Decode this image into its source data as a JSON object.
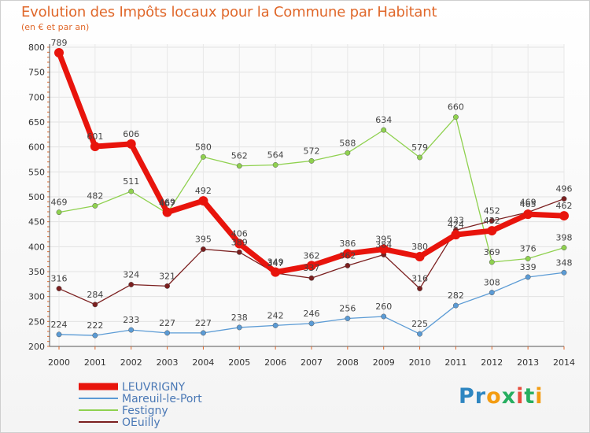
{
  "header": {
    "title": "Evolution des Impôts locaux pour la Commune par Habitant",
    "subtitle": "(en € et par an)"
  },
  "logo": {
    "text": "Proxiti",
    "letters": [
      "P",
      "r",
      "o",
      "x",
      "i",
      "t",
      "i"
    ],
    "colors": [
      "#2e86c1",
      "#2e86c1",
      "#f39c12",
      "#27ae60",
      "#e74c3c",
      "#27ae60",
      "#f39c12"
    ]
  },
  "chart_data": {
    "type": "line",
    "title": "Evolution des Impôts locaux pour la Commune par Habitant",
    "subtitle": "(en € et par an)",
    "xlabel": "",
    "ylabel": "",
    "x": [
      2000,
      2001,
      2002,
      2003,
      2004,
      2005,
      2006,
      2007,
      2008,
      2009,
      2010,
      2011,
      2012,
      2013,
      2014
    ],
    "ylim": [
      200,
      800
    ],
    "yticks": [
      200,
      250,
      300,
      350,
      400,
      450,
      500,
      550,
      600,
      650,
      700,
      750,
      800
    ],
    "grid": true,
    "legend_position": "bottom-left",
    "series": [
      {
        "name": "LEUVRIGNY",
        "color": "#e8140c",
        "values": [
          789,
          601,
          606,
          469,
          492,
          406,
          349,
          362,
          386,
          395,
          380,
          424,
          432,
          465,
          462
        ],
        "labels": [
          "789",
          "601",
          "606",
          "469",
          "492",
          "406",
          "349",
          "362",
          "386",
          "395",
          "380",
          "424",
          "432",
          "465",
          "462"
        ]
      },
      {
        "name": "Mareuil-le-Port",
        "color": "#5b9bd5",
        "values": [
          224,
          222,
          233,
          227,
          227,
          238,
          242,
          246,
          256,
          260,
          225,
          282,
          308,
          339,
          348
        ],
        "labels": [
          "224",
          "222",
          "233",
          "227",
          "227",
          "238",
          "242",
          "246",
          "256",
          "260",
          "225",
          "282",
          "308",
          "339",
          "348"
        ]
      },
      {
        "name": "Festigny",
        "color": "#8fd14f",
        "values": [
          469,
          482,
          511,
          467,
          580,
          562,
          564,
          572,
          588,
          634,
          579,
          660,
          369,
          376,
          398
        ],
        "labels": [
          "469",
          "482",
          "511",
          "467",
          "580",
          "562",
          "564",
          "572",
          "588",
          "634",
          "579",
          "660",
          "369",
          "376",
          "398"
        ]
      },
      {
        "name": "OEuilly",
        "color": "#7b1f1f",
        "values": [
          316,
          284,
          324,
          321,
          395,
          389,
          347,
          337,
          362,
          384,
          316,
          433,
          452,
          469,
          496
        ],
        "labels": [
          "316",
          "284",
          "324",
          "321",
          "395",
          "389",
          "347",
          "337",
          "362",
          "384",
          "316",
          "433",
          "452",
          "469",
          "496"
        ]
      }
    ]
  }
}
